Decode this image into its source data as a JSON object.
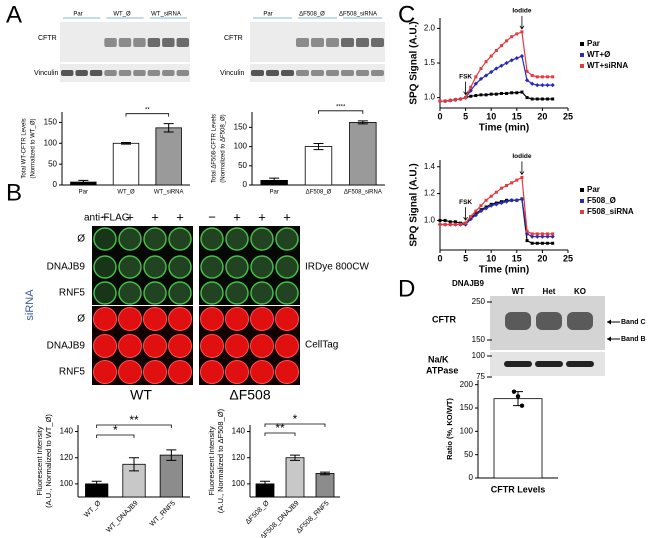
{
  "panel_labels": [
    "A",
    "B",
    "C",
    "D"
  ],
  "blots": {
    "a_left": {
      "lanes": [
        "Par",
        "WT_Ø",
        "WT_siRNA"
      ],
      "rows": [
        "CFTR",
        "Vinculin"
      ]
    },
    "a_right": {
      "lanes": [
        "Par",
        "ΔF508_Ø",
        "ΔF508_siRNA"
      ],
      "rows": [
        "CFTR",
        "Vinculin"
      ]
    },
    "b": {
      "antibody": "anti-FLAG",
      "signs": [
        "−",
        "+",
        "+",
        "+",
        "−",
        "+",
        "+",
        "+"
      ],
      "rows": [
        "Ø",
        "DNAJB9",
        "RNF5",
        "Ø",
        "DNAJB9",
        "RNF5"
      ],
      "group": "siRNA",
      "stains": [
        "IRDye 800CW",
        "CellTag"
      ],
      "plates": [
        "WT",
        "ΔF508"
      ]
    },
    "d": {
      "group": "DNAJB9",
      "lanes": [
        "WT",
        "Het",
        "KO"
      ],
      "markers": [
        250,
        150,
        100,
        75
      ],
      "rows": [
        "CFTR",
        "Na/K",
        "ATPase"
      ],
      "bands": [
        "Band C",
        "Band B"
      ]
    }
  },
  "chart_data": [
    {
      "type": "bar",
      "ylabel": [
        "Total WT-CFTR Levels",
        "(Normalized to WT_Ø)"
      ],
      "categories": [
        "Par",
        "WT_Ø",
        "WT_siRNA"
      ],
      "values": [
        7,
        100,
        137
      ],
      "errors": [
        4,
        2,
        10
      ],
      "colors": [
        "#000000",
        "#ffffff",
        "#9a9a9a"
      ],
      "ylim": [
        0,
        175
      ],
      "yticks": [
        0,
        50,
        100,
        150
      ],
      "annotations": [
        "**"
      ]
    },
    {
      "type": "bar",
      "ylabel": [
        "Total ΔF508-CFTR Levels",
        "(Normalized to ΔF508_Ø)"
      ],
      "categories": [
        "Par",
        "ΔF508_Ø",
        "ΔF508_siRNA"
      ],
      "values": [
        12,
        100,
        163
      ],
      "errors": [
        6,
        8,
        4
      ],
      "colors": [
        "#000000",
        "#ffffff",
        "#9a9a9a"
      ],
      "ylim": [
        0,
        190
      ],
      "yticks": [
        0,
        50,
        100,
        150
      ],
      "annotations": [
        "****"
      ]
    },
    {
      "type": "bar",
      "ylabel": [
        "Fluorescent Intensity",
        "(A.U., Normalized to WT_Ø)"
      ],
      "categories": [
        "WT_Ø",
        "WT_DNAJB9",
        "WT_RNF5"
      ],
      "values": [
        100,
        115,
        122
      ],
      "errors": [
        2,
        5,
        4
      ],
      "colors": [
        "#000000",
        "#c8c8c8",
        "#8c8c8c"
      ],
      "ylim": [
        90,
        145
      ],
      "yticks": [
        100,
        120,
        140
      ],
      "annotations": [
        "*",
        "**"
      ]
    },
    {
      "type": "bar",
      "ylabel": [
        "Fluorescent Intensity",
        "(A.U., Normalized to ΔF508_Ø)"
      ],
      "categories": [
        "ΔF508_Ø",
        "ΔF508_DNAJB9",
        "ΔF508_RNF5"
      ],
      "values": [
        100,
        120,
        108
      ],
      "errors": [
        2,
        2,
        1
      ],
      "colors": [
        "#000000",
        "#c8c8c8",
        "#8c8c8c"
      ],
      "ylim": [
        90,
        145
      ],
      "yticks": [
        100,
        120,
        140
      ],
      "annotations": [
        "**",
        "*"
      ]
    },
    {
      "type": "line",
      "ylabel": "SPQ Signal (A.U.)",
      "xlabel": "Time (min)",
      "x": [
        0,
        1,
        2,
        3,
        4,
        5,
        6,
        7,
        8,
        9,
        10,
        11,
        12,
        13,
        14,
        15,
        16,
        17,
        18,
        19,
        20,
        21,
        22
      ],
      "series": [
        {
          "name": "Par",
          "color": "#000000",
          "values": [
            0.95,
            0.95,
            0.96,
            0.97,
            0.98,
            1.0,
            1.02,
            1.03,
            1.04,
            1.04,
            1.05,
            1.05,
            1.06,
            1.06,
            1.07,
            1.07,
            1.08,
            1.0,
            0.98,
            0.98,
            0.98,
            0.98,
            0.98
          ]
        },
        {
          "name": "WT+Ø",
          "color": "#2a2ab8",
          "values": [
            0.95,
            0.95,
            0.96,
            0.97,
            0.98,
            1.0,
            1.1,
            1.2,
            1.27,
            1.32,
            1.37,
            1.42,
            1.46,
            1.5,
            1.54,
            1.57,
            1.6,
            1.25,
            1.2,
            1.18,
            1.18,
            1.18,
            1.18
          ]
        },
        {
          "name": "WT+siRNA",
          "color": "#e8383d",
          "values": [
            0.95,
            0.95,
            0.96,
            0.97,
            0.98,
            1.0,
            1.15,
            1.3,
            1.42,
            1.52,
            1.6,
            1.68,
            1.75,
            1.82,
            1.88,
            1.92,
            1.95,
            1.38,
            1.32,
            1.3,
            1.3,
            1.3,
            1.3
          ]
        }
      ],
      "xlim": [
        0,
        25
      ],
      "xticks": [
        0,
        5,
        10,
        15,
        20,
        25
      ],
      "ylim": [
        0.85,
        2.15
      ],
      "yticks": [
        {
          "value": 1,
          "label": "1.0"
        },
        1.5,
        {
          "value": 2,
          "label": "2.0"
        }
      ],
      "annotations": [
        "FSK",
        "Iodide"
      ]
    },
    {
      "type": "line",
      "ylabel": "SPQ Signal (A.U.)",
      "xlabel": "Time (min)",
      "x": [
        0,
        1,
        2,
        3,
        4,
        5,
        6,
        7,
        8,
        9,
        10,
        11,
        12,
        13,
        14,
        15,
        16,
        17,
        18,
        19,
        20,
        21,
        22
      ],
      "series": [
        {
          "name": "Par",
          "color": "#000000",
          "values": [
            1.0,
            1.0,
            0.99,
            0.99,
            0.98,
            0.98,
            1.02,
            1.05,
            1.08,
            1.1,
            1.12,
            1.13,
            1.14,
            1.15,
            1.15,
            1.15,
            1.16,
            0.85,
            0.83,
            0.83,
            0.83,
            0.83,
            0.83
          ]
        },
        {
          "name": "F508_Ø",
          "color": "#2a2ab8",
          "values": [
            0.97,
            0.97,
            0.97,
            0.97,
            0.97,
            0.97,
            1.01,
            1.04,
            1.07,
            1.09,
            1.11,
            1.12,
            1.13,
            1.14,
            1.15,
            1.15,
            1.16,
            0.9,
            0.88,
            0.88,
            0.88,
            0.88,
            0.88
          ]
        },
        {
          "name": "F508_siRNA",
          "color": "#e8383d",
          "values": [
            0.97,
            0.97,
            0.97,
            0.97,
            0.97,
            0.98,
            1.03,
            1.07,
            1.11,
            1.15,
            1.18,
            1.21,
            1.24,
            1.26,
            1.28,
            1.3,
            1.32,
            0.92,
            0.9,
            0.9,
            0.9,
            0.9,
            0.9
          ]
        }
      ],
      "xlim": [
        0,
        25
      ],
      "xticks": [
        0,
        5,
        10,
        15,
        20,
        25
      ],
      "ylim": [
        0.78,
        1.45
      ],
      "yticks": [
        {
          "value": 1,
          "label": "1.0"
        },
        1.2,
        1.4
      ],
      "annotations": [
        "FSK",
        "Iodide"
      ]
    },
    {
      "type": "bar",
      "ylabel": [
        "Ratio (%, KO/WT)"
      ],
      "categories": [
        "CFTR Levels"
      ],
      "values": [
        170
      ],
      "errors": [
        15
      ],
      "points": [
        185,
        175,
        155
      ],
      "colors": [
        "#ffffff"
      ],
      "ylim": [
        0,
        210
      ],
      "yticks": [
        0,
        50,
        100,
        150,
        200
      ],
      "annotations": []
    }
  ]
}
